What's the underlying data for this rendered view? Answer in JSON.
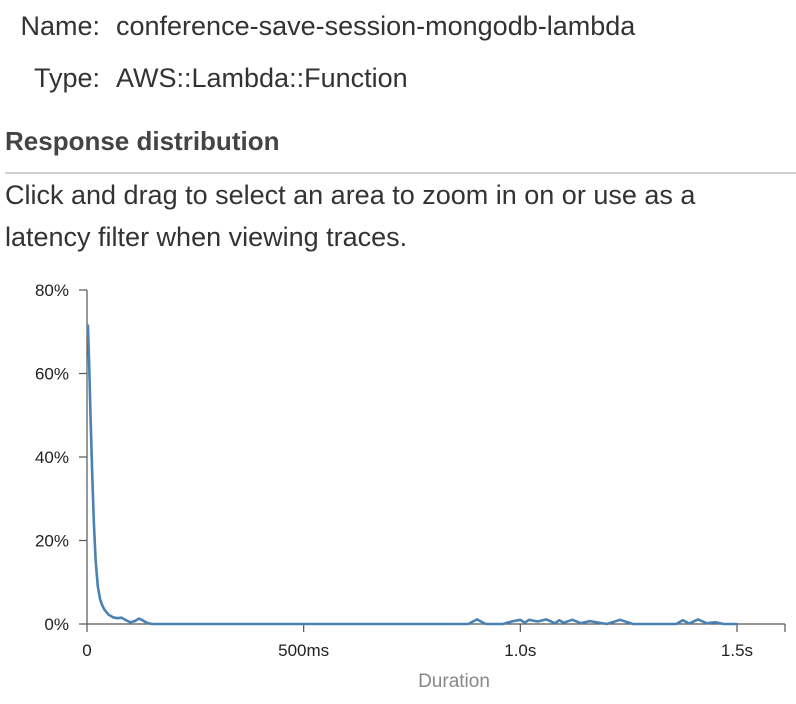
{
  "node": {
    "name_label": "Name:",
    "name_value": "conference-save-session-mongodb-lambda",
    "type_label": "Type:",
    "type_value": "AWS::Lambda::Function"
  },
  "section": {
    "title": "Response distribution",
    "description": "Click and drag to select an area to zoom in on or use as a latency filter when viewing traces."
  },
  "colors": {
    "line": "#4a82b4",
    "axis": "#555555",
    "divider": "#d0d0d0"
  },
  "chart_data": {
    "type": "line",
    "title": "",
    "xlabel": "Duration",
    "ylabel": "",
    "x_unit": "ms",
    "xlim": [
      0,
      1600
    ],
    "ylim": [
      0,
      80
    ],
    "x_ticks": [
      {
        "value": 0,
        "label": "0"
      },
      {
        "value": 500,
        "label": "500ms"
      },
      {
        "value": 1000,
        "label": "1.0s"
      },
      {
        "value": 1500,
        "label": "1.5s"
      }
    ],
    "y_ticks": [
      {
        "value": 0,
        "label": "0%"
      },
      {
        "value": 20,
        "label": "20%"
      },
      {
        "value": 40,
        "label": "40%"
      },
      {
        "value": 60,
        "label": "60%"
      },
      {
        "value": 80,
        "label": "80%"
      }
    ],
    "series": [
      {
        "x": [
          2,
          5,
          8,
          12,
          16,
          20,
          25,
          30,
          35,
          40,
          50,
          60,
          70,
          80,
          90,
          100,
          110,
          120,
          130,
          140,
          150,
          200,
          300,
          400,
          500,
          600,
          700,
          800,
          880,
          900,
          920,
          960,
          980,
          1000,
          1010,
          1020,
          1040,
          1060,
          1080,
          1090,
          1100,
          1120,
          1140,
          1160,
          1200,
          1230,
          1260,
          1300,
          1360,
          1375,
          1390,
          1410,
          1430,
          1450,
          1470,
          1500
        ],
        "y": [
          71.5,
          62,
          50,
          36,
          24,
          15,
          9,
          6,
          4.5,
          3.5,
          2.2,
          1.6,
          1.4,
          1.5,
          0.9,
          0.4,
          0.7,
          1.3,
          0.8,
          0.2,
          0,
          0,
          0,
          0,
          0,
          0,
          0,
          0,
          0,
          1.1,
          0,
          0,
          0.6,
          1.0,
          0.3,
          1.0,
          0.6,
          1.1,
          0.2,
          0.9,
          0.3,
          1.0,
          0.2,
          0.7,
          0,
          1.0,
          0,
          0,
          0,
          0.9,
          0.1,
          1.1,
          0.2,
          0.4,
          0,
          0
        ]
      }
    ]
  }
}
